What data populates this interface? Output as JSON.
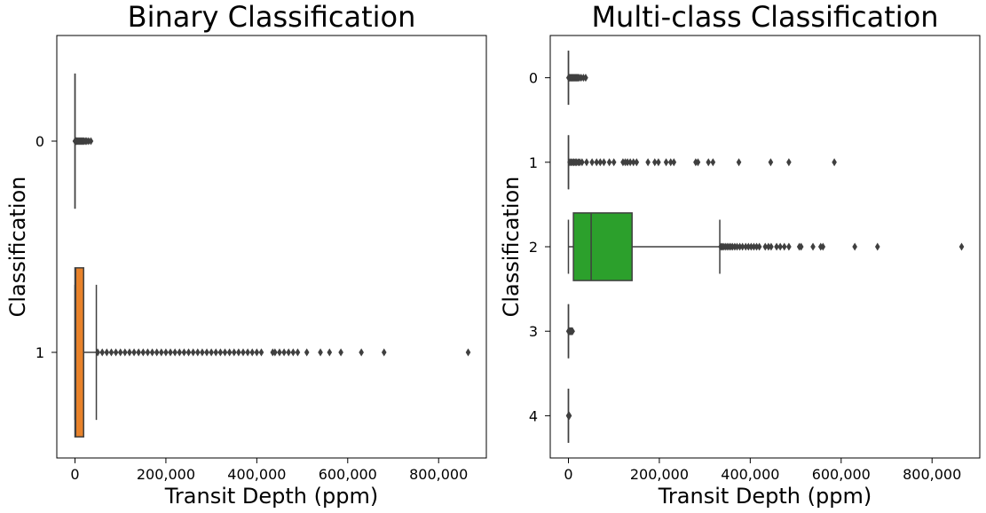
{
  "chart_data": [
    {
      "type": "boxplot",
      "orientation": "horizontal",
      "title": "Binary Classification",
      "xlabel": "Transit Depth (ppm)",
      "ylabel": "Classification",
      "xlim": [
        -40000,
        905000
      ],
      "xticks": [
        0,
        200000,
        400000,
        600000,
        800000
      ],
      "xtick_labels": [
        "0",
        "200,000",
        "400,000",
        "600,000",
        "800,000"
      ],
      "categories": [
        "0",
        "1"
      ],
      "boxes": [
        {
          "category": "0",
          "color": "#1f77b4",
          "min": 0,
          "q1": 0,
          "median": 0,
          "q3": 0,
          "max": 100,
          "outliers": [
            200,
            400,
            800,
            1500,
            2500,
            4000,
            6000,
            8000,
            10000,
            12000,
            14000,
            16000,
            18000,
            20000,
            23000,
            26000,
            30000,
            35000
          ]
        },
        {
          "category": "1",
          "color": "#e8822a",
          "min": 0,
          "q1": 0,
          "median": 1500,
          "q3": 19000,
          "max": 47000,
          "outliers": [
            50000,
            60000,
            70000,
            80000,
            90000,
            100000,
            110000,
            120000,
            130000,
            140000,
            150000,
            160000,
            170000,
            180000,
            190000,
            200000,
            210000,
            220000,
            230000,
            240000,
            250000,
            260000,
            270000,
            280000,
            290000,
            300000,
            310000,
            320000,
            330000,
            340000,
            350000,
            360000,
            370000,
            380000,
            390000,
            400000,
            410000,
            435000,
            440000,
            450000,
            460000,
            470000,
            480000,
            490000,
            510000,
            540000,
            560000,
            585000,
            630000,
            680000,
            865000
          ]
        }
      ]
    },
    {
      "type": "boxplot",
      "orientation": "horizontal",
      "title": "Multi-class Classification",
      "xlabel": "Transit Depth (ppm)",
      "ylabel": "Classification",
      "xlim": [
        -40000,
        905000
      ],
      "xticks": [
        0,
        200000,
        400000,
        600000,
        800000
      ],
      "xtick_labels": [
        "0",
        "200,000",
        "400,000",
        "600,000",
        "800,000"
      ],
      "categories": [
        "0",
        "1",
        "2",
        "3",
        "4"
      ],
      "boxes": [
        {
          "category": "0",
          "color": "#1f77b4",
          "min": 0,
          "q1": 0,
          "median": 0,
          "q3": 0,
          "max": 100,
          "outliers": [
            500,
            1500,
            3000,
            5000,
            7000,
            9000,
            11000,
            13000,
            15000,
            17000,
            19000,
            21000,
            24000,
            28000,
            33000,
            38000
          ]
        },
        {
          "category": "1",
          "color": "#ff7f0e",
          "min": 0,
          "q1": 0,
          "median": 0,
          "q3": 0,
          "max": 200,
          "outliers": [
            3000,
            6000,
            9000,
            12000,
            15000,
            18000,
            22000,
            25000,
            30000,
            40000,
            52000,
            62000,
            70000,
            78000,
            90000,
            100000,
            120000,
            125000,
            130000,
            136000,
            143000,
            150000,
            175000,
            190000,
            198000,
            215000,
            225000,
            232000,
            280000,
            285000,
            308000,
            318000,
            375000,
            445000,
            485000,
            585000
          ]
        },
        {
          "category": "2",
          "color": "#2ca02c",
          "min": 0,
          "q1": 11000,
          "median": 50000,
          "q3": 140000,
          "max": 333000,
          "outliers": [
            335000,
            338000,
            341000,
            345000,
            349000,
            353000,
            357000,
            361000,
            366000,
            371000,
            377000,
            383000,
            390000,
            396000,
            402000,
            408000,
            414000,
            420000,
            433000,
            440000,
            446000,
            458000,
            466000,
            475000,
            485000,
            508000,
            512000,
            538000,
            555000,
            560000,
            630000,
            680000,
            865000
          ]
        },
        {
          "category": "3",
          "color": "#d62728",
          "min": 0,
          "q1": 0,
          "median": 0,
          "q3": 0,
          "max": 100,
          "outliers": [
            300,
            1000,
            2000,
            3000,
            4000,
            5000,
            6000,
            7000,
            8000,
            9000
          ]
        },
        {
          "category": "4",
          "color": "#9467bd",
          "min": 0,
          "q1": 0,
          "median": 0,
          "q3": 0,
          "max": 0,
          "outliers": [
            100,
            300,
            600,
            900,
            1200,
            1600,
            2000
          ]
        }
      ]
    }
  ]
}
